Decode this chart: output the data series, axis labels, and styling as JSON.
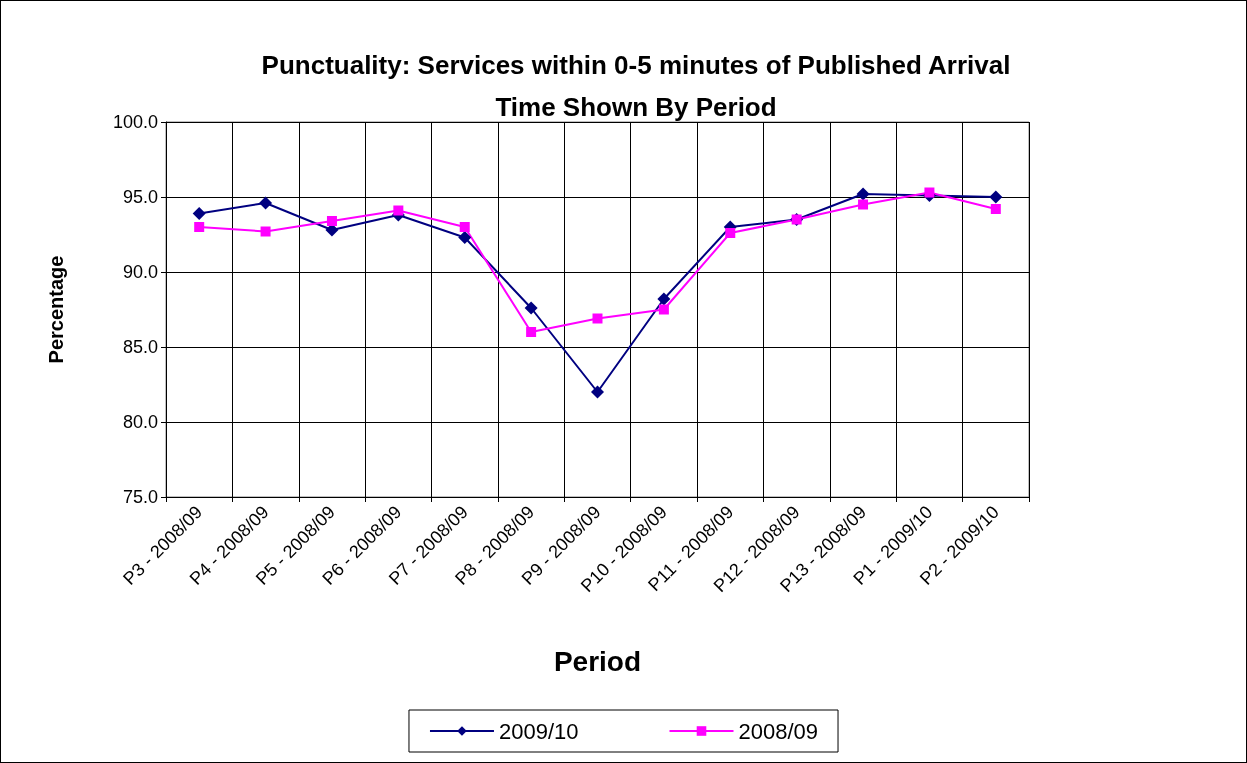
{
  "chart_data": {
    "type": "line",
    "title": "Punctuality: Services within 0-5 minutes of Published Arrival\nTime Shown By Period",
    "xlabel": "Period",
    "ylabel": "Percentage",
    "categories": [
      "P3 - 2008/09",
      "P4 - 2008/09",
      "P5 - 2008/09",
      "P6 - 2008/09",
      "P7 - 2008/09",
      "P8 - 2008/09",
      "P9 - 2008/09",
      "P10 - 2008/09",
      "P11 - 2008/09",
      "P12 - 2008/09",
      "P13 - 2008/09",
      "P1 - 2009/10",
      "P2 - 2009/10"
    ],
    "series": [
      {
        "name": "2009/10",
        "color": "#000080",
        "marker": "diamond",
        "values": [
          93.9,
          94.6,
          92.8,
          93.8,
          92.3,
          87.6,
          82.0,
          88.2,
          93.0,
          93.5,
          95.2,
          95.1,
          95.0
        ]
      },
      {
        "name": "2008/09",
        "color": "#ff00ff",
        "marker": "square",
        "values": [
          93.0,
          92.7,
          93.4,
          94.1,
          93.0,
          86.0,
          86.9,
          87.5,
          92.6,
          93.5,
          94.5,
          95.3,
          94.2
        ]
      }
    ],
    "ylim": [
      75,
      100
    ],
    "yticks": [
      {
        "value": 75,
        "label": "75.0"
      },
      {
        "value": 80,
        "label": "80.0"
      },
      {
        "value": 85,
        "label": "85.0"
      },
      {
        "value": 90,
        "label": "90.0"
      },
      {
        "value": 95,
        "label": "95.0"
      },
      {
        "value": 100,
        "label": "100.0"
      }
    ],
    "grid": true,
    "legend": "bottom"
  }
}
